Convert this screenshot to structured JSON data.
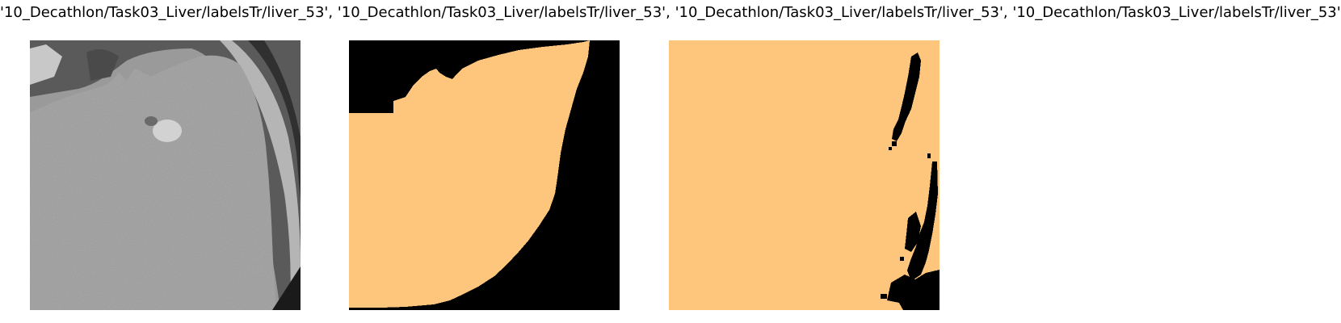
{
  "figure": {
    "title": "'10_Decathlon/Task03_Liver/labelsTr/liver_53', '10_Decathlon/Task03_Liver/labelsTr/liver_53', '10_Decathlon/Task03_Liver/labelsTr/liver_53', '10_Decathlon/Task03_Liver/labelsTr/liver_53'"
  },
  "colors": {
    "background": "#ffffff",
    "mask_foreground": "#fec57d",
    "mask_background": "#000000",
    "ct_tissue": "#a9a9a9",
    "ct_dark": "#2a2a2a"
  }
}
